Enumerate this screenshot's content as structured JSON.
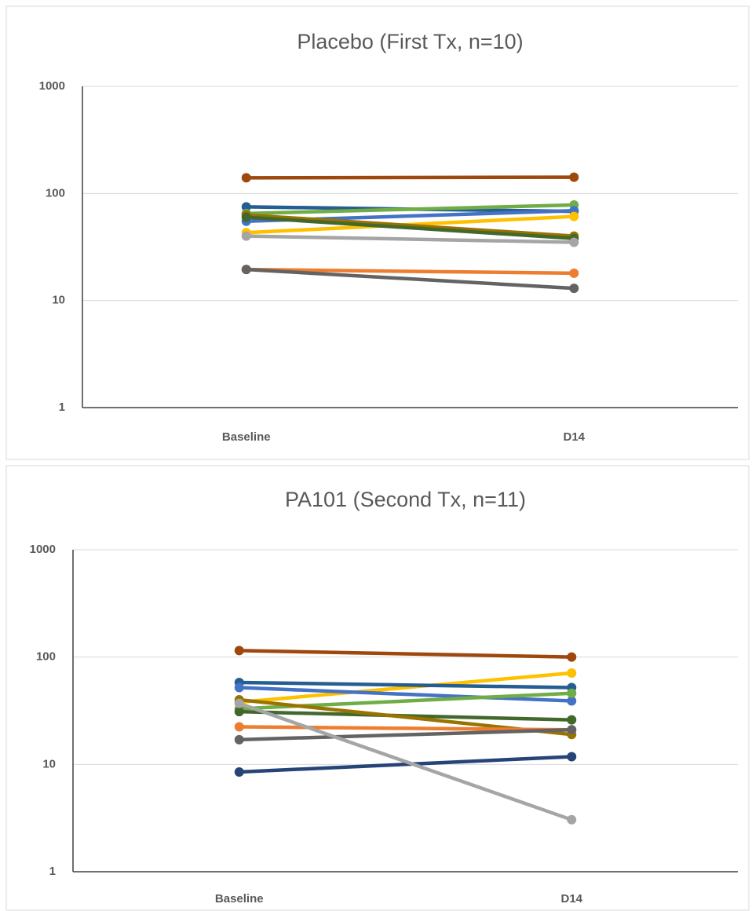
{
  "chart_data": [
    {
      "type": "line",
      "title": "Placebo (First Tx, n=10)",
      "log_scale": true,
      "grid": true,
      "categories": [
        "Baseline",
        "D14"
      ],
      "ylim": [
        1,
        1000
      ],
      "yticks": [
        1,
        10,
        100,
        1000
      ],
      "series": [
        {
          "color": "#9e480e",
          "values": [
            140,
            142
          ]
        },
        {
          "color": "#255e91",
          "values": [
            75,
            68
          ]
        },
        {
          "color": "#70ad47",
          "values": [
            65,
            78
          ]
        },
        {
          "color": "#4472c4",
          "values": [
            55,
            69
          ]
        },
        {
          "color": "#ffc000",
          "values": [
            43,
            61
          ]
        },
        {
          "color": "#997300",
          "values": [
            63,
            40
          ]
        },
        {
          "color": "#43682b",
          "values": [
            60,
            38
          ]
        },
        {
          "color": "#a5a5a5",
          "values": [
            40,
            35
          ]
        },
        {
          "color": "#ed7d31",
          "values": [
            19.5,
            18
          ]
        },
        {
          "color": "#636363",
          "values": [
            19.5,
            13
          ]
        }
      ]
    },
    {
      "type": "line",
      "title": "PA101 (Second Tx, n=11)",
      "log_scale": true,
      "grid": true,
      "categories": [
        "Baseline",
        "D14"
      ],
      "ylim": [
        1,
        1000
      ],
      "yticks": [
        1,
        10,
        100,
        1000
      ],
      "series": [
        {
          "color": "#9e480e",
          "values": [
            115,
            100
          ]
        },
        {
          "color": "#ffc000",
          "values": [
            38,
            71
          ]
        },
        {
          "color": "#255e91",
          "values": [
            58,
            52
          ]
        },
        {
          "color": "#4472c4",
          "values": [
            52,
            39
          ]
        },
        {
          "color": "#70ad47",
          "values": [
            33,
            46
          ]
        },
        {
          "color": "#43682b",
          "values": [
            31,
            26
          ]
        },
        {
          "color": "#997300",
          "values": [
            40,
            19
          ]
        },
        {
          "color": "#ed7d31",
          "values": [
            22.4,
            21
          ]
        },
        {
          "color": "#636363",
          "values": [
            17,
            21
          ]
        },
        {
          "color": "#264478",
          "values": [
            8.5,
            11.8
          ]
        },
        {
          "color": "#a5a5a5",
          "values": [
            37,
            3.05
          ]
        }
      ]
    }
  ]
}
